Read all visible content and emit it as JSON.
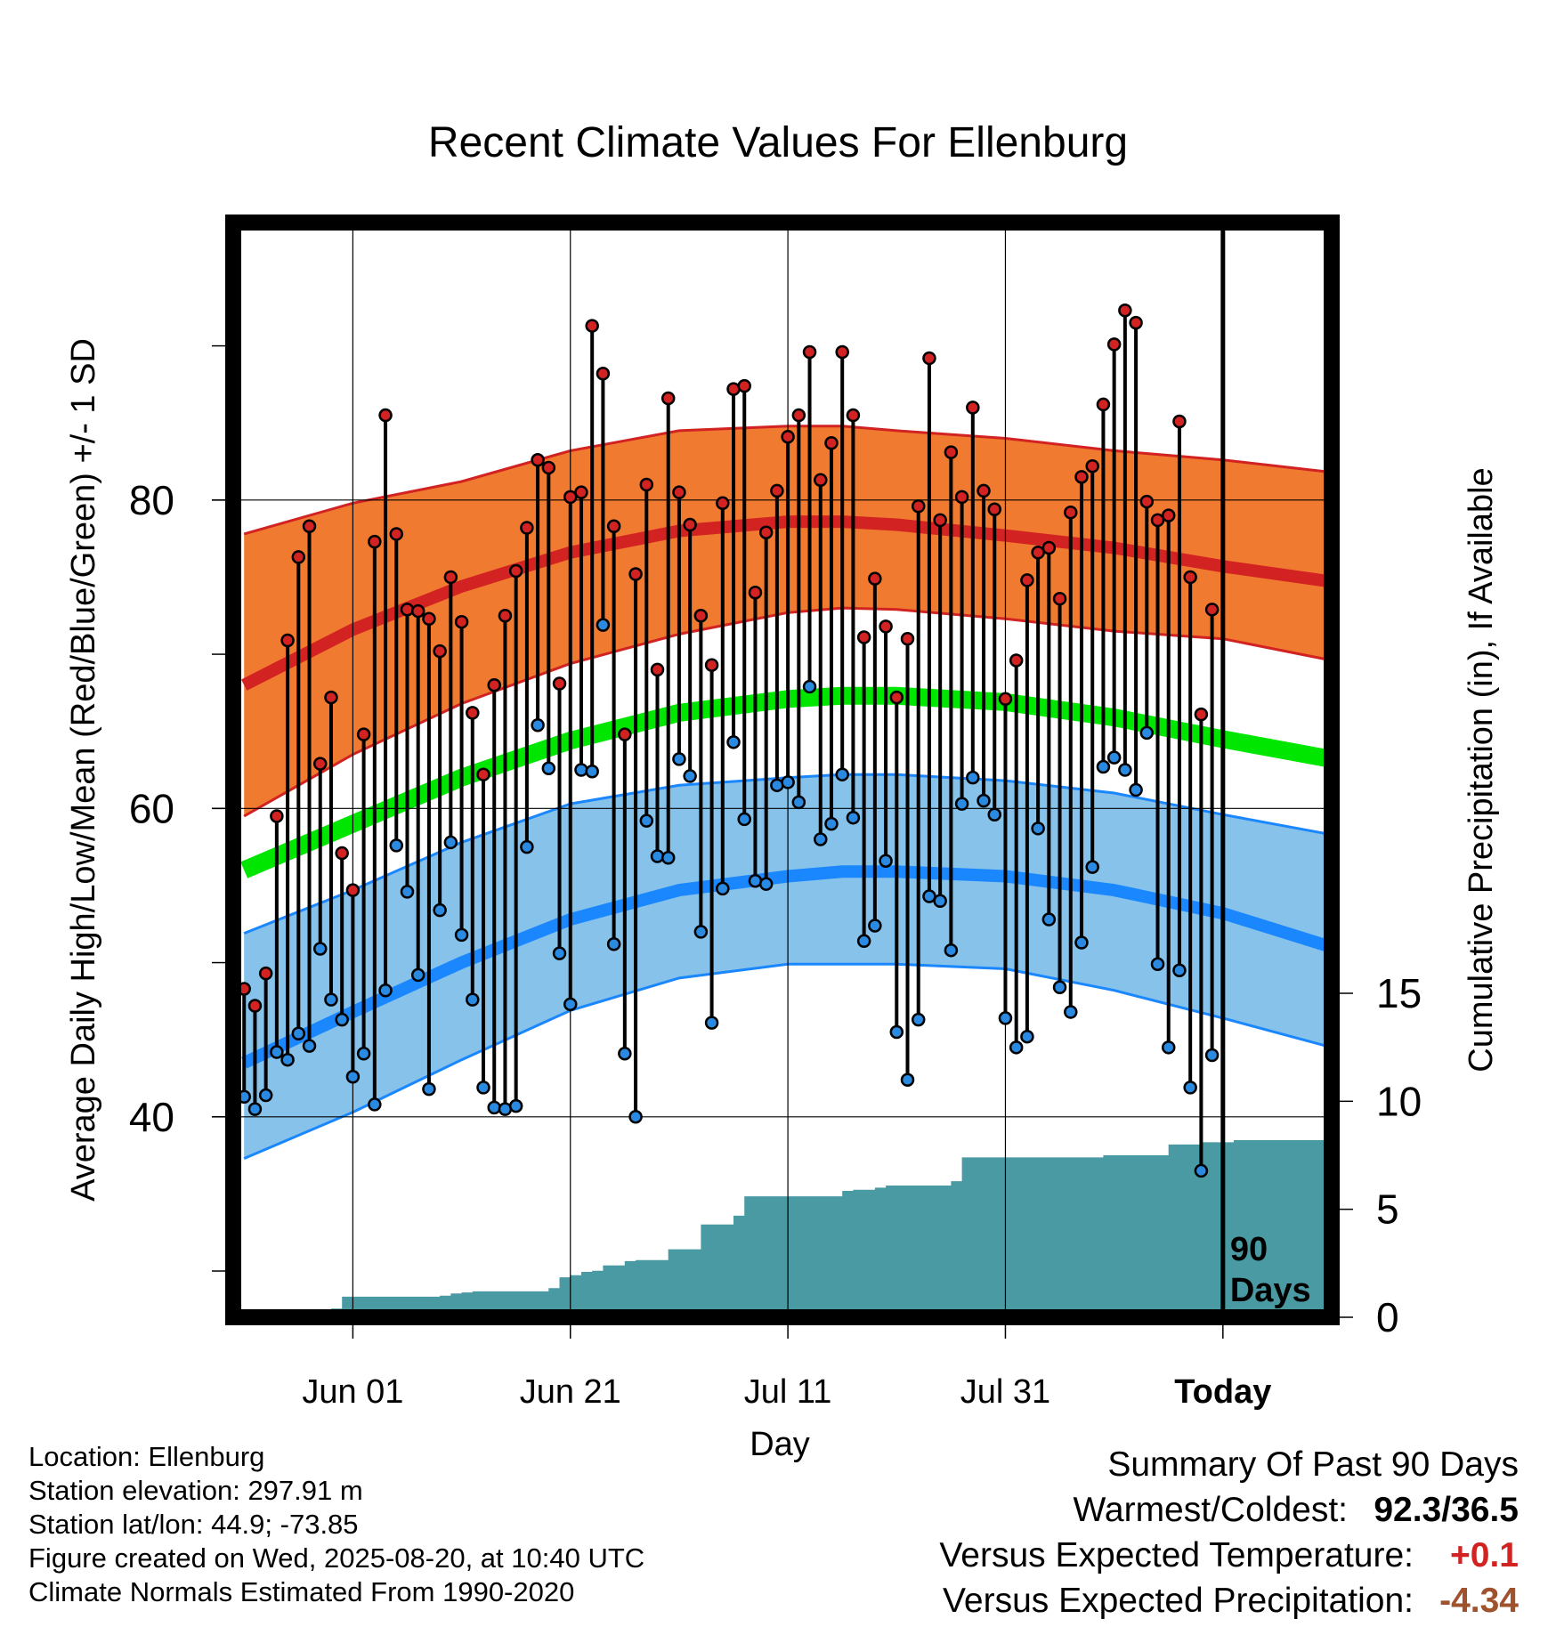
{
  "chart_data": {
    "type": "line",
    "title": "Recent Climate Values For Ellenburg",
    "xlabel": "Day",
    "ylabel": "Average Daily High/Low/Mean (Red/Blue/Green) +/- 1 SD",
    "y2label": "Cumulative Precipitation (in), If Available",
    "x_ticklabels": [
      "Jun 01",
      "Jun 21",
      "Jul 11",
      "Jul 31",
      "Today"
    ],
    "x_ticks_day": [
      10,
      30,
      50,
      70,
      90
    ],
    "x_range_days": [
      -1,
      100
    ],
    "y_ticklabels": [
      "40",
      "60",
      "80"
    ],
    "ylim": [
      27,
      98
    ],
    "y2_ticklabels": [
      "0",
      "5",
      "10",
      "15"
    ],
    "y2lim": [
      0,
      15
    ],
    "today_label": "90\nDays",
    "normals": {
      "day": [
        0,
        10,
        20,
        30,
        40,
        50,
        55,
        60,
        70,
        80,
        90,
        100
      ],
      "high_mean": [
        68,
        71.6,
        74.4,
        76.6,
        78,
        78.6,
        78.6,
        78.4,
        77.7,
        76.9,
        75.7,
        74.7
      ],
      "high_sd_upper": [
        77.8,
        79.8,
        81.2,
        83.2,
        84.5,
        84.8,
        84.8,
        84.5,
        84,
        83.2,
        82.6,
        81.8
      ],
      "high_sd_lower": [
        59.5,
        63.5,
        66.8,
        69.4,
        71.3,
        72.7,
        73.0,
        72.9,
        72.3,
        71.5,
        71.0,
        69.6
      ],
      "mean": [
        56,
        59,
        62,
        64.4,
        66.2,
        67.1,
        67.3,
        67.3,
        66.9,
        65.9,
        64.5,
        63.2
      ],
      "low_mean": [
        43.5,
        46.8,
        50,
        52.8,
        54.7,
        55.6,
        55.9,
        55.9,
        55.6,
        54.7,
        53.2,
        51
      ],
      "low_sd_upper": [
        51.9,
        54.7,
        57.8,
        60.3,
        61.5,
        62,
        62.2,
        62.2,
        61.8,
        61,
        59.6,
        58.3
      ],
      "low_sd_lower": [
        37.3,
        40.3,
        43.7,
        46.9,
        49,
        49.9,
        49.9,
        49.9,
        49.6,
        48.2,
        46.4,
        44.5
      ]
    },
    "series": [
      {
        "name": "High",
        "color": "#d22222",
        "values": [
          48.3,
          47.2,
          49.3,
          59.5,
          70.9,
          76.3,
          78.3,
          62.9,
          67.2,
          57.1,
          54.7,
          64.8,
          77.3,
          85.5,
          77.8,
          72.9,
          72.8,
          72.3,
          70.2,
          75.0,
          72.1,
          66.2,
          62.2,
          68.0,
          72.5,
          75.4,
          78.2,
          82.6,
          82.1,
          68.1,
          80.2,
          80.5,
          91.3,
          88.2,
          78.3,
          64.8,
          75.2,
          81.0,
          69.0,
          86.6,
          80.5,
          78.4,
          72.5,
          69.3,
          79.8,
          87.2,
          87.4,
          74.0,
          77.9,
          80.6,
          84.1,
          85.5,
          89.6,
          81.3,
          83.7,
          89.6,
          85.5,
          71.1,
          74.9,
          71.8,
          67.2,
          71.0,
          79.6,
          89.2,
          78.7,
          83.1,
          80.2,
          86.0,
          80.6,
          79.4,
          67.1,
          69.6,
          74.8,
          76.6,
          76.9,
          73.6,
          79.2,
          81.5,
          82.2,
          86.2,
          90.1,
          92.3,
          91.5,
          79.9,
          78.7,
          79.0,
          85.1,
          75.0,
          66.1,
          72.9
        ]
      },
      {
        "name": "Low",
        "color": "#2a8ae2",
        "values": [
          41.3,
          40.5,
          41.4,
          44.2,
          43.7,
          45.4,
          44.6,
          50.9,
          47.6,
          46.3,
          42.6,
          44.1,
          40.8,
          48.2,
          57.6,
          54.6,
          49.2,
          41.8,
          53.4,
          57.8,
          51.8,
          47.6,
          41.9,
          40.6,
          40.5,
          40.7,
          57.5,
          65.4,
          62.6,
          50.6,
          47.3,
          62.5,
          62.4,
          71.9,
          51.2,
          44.1,
          40.0,
          59.2,
          56.9,
          56.8,
          63.2,
          62.1,
          52.0,
          46.1,
          54.8,
          64.3,
          59.3,
          55.3,
          55.1,
          61.5,
          61.7,
          60.4,
          67.9,
          58.0,
          59.0,
          62.2,
          59.4,
          51.4,
          52.4,
          56.6,
          45.5,
          42.4,
          46.3,
          54.3,
          54.0,
          50.8,
          60.3,
          62.0,
          60.5,
          59.6,
          46.4,
          44.5,
          45.2,
          58.7,
          52.8,
          48.4,
          46.8,
          51.3,
          56.2,
          62.7,
          63.3,
          62.5,
          61.2,
          64.9,
          49.9,
          44.5,
          49.5,
          41.9,
          36.5,
          44.0
        ]
      }
    ],
    "precip_cumulative": {
      "day": [
        0,
        1,
        2,
        3,
        4,
        5,
        6,
        7,
        8,
        9,
        10,
        11,
        12,
        13,
        14,
        15,
        16,
        17,
        18,
        19,
        20,
        21,
        22,
        23,
        24,
        25,
        26,
        27,
        28,
        29,
        30,
        31,
        32,
        33,
        34,
        35,
        36,
        37,
        38,
        39,
        40,
        41,
        42,
        43,
        44,
        45,
        46,
        47,
        48,
        49,
        50,
        51,
        52,
        53,
        54,
        55,
        56,
        57,
        58,
        59,
        60,
        61,
        62,
        63,
        64,
        65,
        66,
        67,
        68,
        69,
        70,
        71,
        72,
        73,
        74,
        75,
        76,
        77,
        78,
        79,
        80,
        81,
        82,
        83,
        84,
        85,
        86,
        87,
        88,
        89,
        90,
        91,
        92,
        93,
        94,
        95,
        96,
        97,
        98
      ],
      "values": [
        0,
        0,
        0.05,
        0.05,
        0.05,
        0.05,
        0.05,
        0.2,
        0.4,
        0.95,
        0.95,
        0.95,
        0.95,
        0.95,
        0.95,
        0.95,
        0.95,
        0.95,
        1.0,
        1.1,
        1.15,
        1.2,
        1.2,
        1.2,
        1.2,
        1.2,
        1.2,
        1.2,
        1.35,
        1.85,
        1.95,
        2.1,
        2.15,
        2.4,
        2.4,
        2.6,
        2.65,
        2.65,
        2.65,
        3.15,
        3.15,
        3.15,
        4.3,
        4.3,
        4.3,
        4.7,
        5.6,
        5.6,
        5.6,
        5.6,
        5.6,
        5.6,
        5.6,
        5.6,
        5.6,
        5.85,
        5.9,
        5.9,
        6.0,
        6.1,
        6.1,
        6.1,
        6.1,
        6.1,
        6.1,
        6.3,
        7.4,
        7.4,
        7.4,
        7.4,
        7.4,
        7.4,
        7.4,
        7.4,
        7.4,
        7.4,
        7.4,
        7.4,
        7.4,
        7.5,
        7.5,
        7.5,
        7.5,
        7.5,
        7.5,
        8.0,
        8.0,
        8.0,
        8.1,
        8.1,
        8.1,
        8.2,
        8.2,
        8.2,
        8.2,
        8.2,
        8.2,
        8.2,
        8.2
      ],
      "color": "#4a9aa3"
    },
    "colors": {
      "high_band": "#f07a30",
      "high_mean": "#d22222",
      "mean": "#00e600",
      "low_band": "#86c2ea",
      "low_mean": "#1a87ff",
      "today_line": "#000000"
    },
    "grid": true
  },
  "info": {
    "location": "Location: Ellenburg",
    "elevation": "Station elevation: 297.91 m",
    "latlon": "Station lat/lon: 44.9; -73.85",
    "created": "Figure created on Wed, 2025-08-20, at 10:40 UTC",
    "normals": "Climate Normals Estimated From 1990-2020"
  },
  "summary": {
    "heading": "Summary Of Past 90 Days",
    "warm_cold_label": "Warmest/Coldest:",
    "warm_cold_value": "92.3/36.5",
    "temp_label": "Versus Expected Temperature:",
    "temp_value": "+0.1",
    "temp_color": "#d22222",
    "precip_label": "Versus Expected Precipitation:",
    "precip_value": "-4.34",
    "precip_color": "#a0522d"
  }
}
